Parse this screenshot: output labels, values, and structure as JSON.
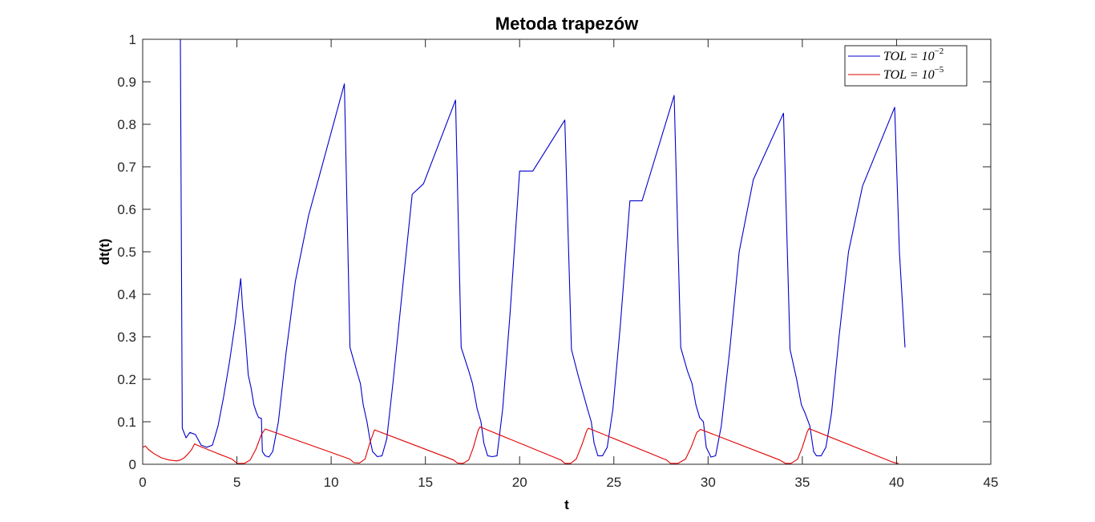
{
  "chart_data": {
    "type": "line",
    "title": "Metoda trapezów",
    "xlabel": "t",
    "ylabel": "dt(t)",
    "xlim": [
      0,
      45
    ],
    "ylim": [
      0,
      1
    ],
    "xticks": [
      0,
      5,
      10,
      15,
      20,
      25,
      30,
      35,
      40,
      45
    ],
    "yticks": [
      0,
      0.1,
      0.2,
      0.3,
      0.4,
      0.5,
      0.6,
      0.7,
      0.8,
      0.9,
      1
    ],
    "xtick_labels": [
      "0",
      "5",
      "10",
      "15",
      "20",
      "25",
      "30",
      "35",
      "40",
      "45"
    ],
    "ytick_labels": [
      "0",
      "0.1",
      "0.2",
      "0.3",
      "0.4",
      "0.5",
      "0.6",
      "0.7",
      "0.8",
      "0.9",
      "1"
    ],
    "grid": false,
    "legend_position": "top-right",
    "series": [
      {
        "name": "TOL = 10^-2",
        "legend_base": "TOL = 10",
        "legend_exp": "−2",
        "color": "#0000cc",
        "x": [
          2.0,
          2.1,
          2.3,
          2.5,
          2.8,
          3.1,
          3.4,
          3.7,
          4.0,
          4.3,
          4.6,
          4.9,
          5.2,
          5.3,
          5.45,
          5.6,
          5.75,
          5.9,
          6.05,
          6.15,
          6.3,
          6.35,
          6.5,
          6.7,
          6.9,
          7.2,
          7.6,
          8.1,
          8.8,
          10.7,
          11.0,
          11.35,
          11.55,
          11.7,
          11.9,
          12.05,
          12.2,
          12.45,
          12.7,
          12.95,
          13.3,
          13.8,
          14.3,
          14.9,
          16.6,
          16.9,
          17.3,
          17.5,
          17.75,
          17.95,
          18.1,
          18.3,
          18.55,
          18.8,
          19.1,
          19.5,
          20.0,
          20.7,
          22.4,
          22.75,
          23.1,
          23.35,
          23.6,
          23.8,
          23.95,
          24.15,
          24.4,
          24.65,
          24.95,
          25.35,
          25.85,
          26.5,
          28.2,
          28.55,
          28.9,
          29.15,
          29.35,
          29.55,
          29.75,
          29.9,
          30.15,
          30.4,
          30.7,
          31.15,
          31.65,
          32.4,
          34.0,
          34.35,
          34.7,
          34.95,
          35.15,
          35.4,
          35.6,
          35.75,
          36.0,
          36.25,
          36.55,
          36.95,
          37.45,
          38.2,
          39.9,
          40.15,
          40.45
        ],
        "y": [
          1.0,
          0.085,
          0.062,
          0.075,
          0.07,
          0.045,
          0.04,
          0.045,
          0.09,
          0.16,
          0.24,
          0.33,
          0.437,
          0.37,
          0.3,
          0.21,
          0.18,
          0.14,
          0.12,
          0.11,
          0.108,
          0.03,
          0.02,
          0.017,
          0.03,
          0.1,
          0.26,
          0.43,
          0.585,
          0.895,
          0.275,
          0.22,
          0.19,
          0.14,
          0.1,
          0.06,
          0.03,
          0.018,
          0.02,
          0.06,
          0.2,
          0.42,
          0.635,
          0.66,
          0.857,
          0.275,
          0.22,
          0.19,
          0.13,
          0.1,
          0.05,
          0.02,
          0.018,
          0.02,
          0.13,
          0.36,
          0.69,
          0.69,
          0.81,
          0.27,
          0.21,
          0.17,
          0.13,
          0.1,
          0.05,
          0.02,
          0.02,
          0.04,
          0.13,
          0.33,
          0.62,
          0.62,
          0.868,
          0.275,
          0.22,
          0.19,
          0.14,
          0.11,
          0.1,
          0.04,
          0.017,
          0.02,
          0.09,
          0.27,
          0.5,
          0.67,
          0.826,
          0.27,
          0.2,
          0.14,
          0.12,
          0.09,
          0.03,
          0.02,
          0.02,
          0.04,
          0.12,
          0.3,
          0.5,
          0.655,
          0.84,
          0.5,
          0.275
        ]
      },
      {
        "name": "TOL = 10^-5",
        "legend_base": "TOL = 10",
        "legend_exp": "−5",
        "color": "#e00000",
        "x": [
          0.0,
          0.15,
          0.3,
          0.6,
          1.0,
          1.4,
          1.8,
          2.0,
          2.2,
          2.4,
          2.6,
          2.75,
          3.0,
          4.0,
          4.7,
          4.8,
          5.0,
          5.4,
          5.7,
          6.0,
          6.3,
          6.5,
          11.0,
          11.2,
          11.5,
          11.8,
          12.05,
          12.3,
          16.5,
          16.7,
          17.0,
          17.3,
          17.55,
          17.8,
          17.9,
          22.2,
          22.4,
          22.7,
          23.0,
          23.3,
          23.55,
          23.65,
          27.8,
          28.0,
          28.4,
          28.8,
          29.1,
          29.4,
          29.6,
          33.8,
          34.1,
          34.4,
          34.75,
          35.0,
          35.25,
          35.35,
          39.8,
          40.1
        ],
        "y": [
          0.04,
          0.043,
          0.035,
          0.025,
          0.015,
          0.01,
          0.008,
          0.01,
          0.015,
          0.024,
          0.035,
          0.048,
          0.043,
          0.025,
          0.013,
          0.01,
          0.002,
          0.002,
          0.01,
          0.035,
          0.07,
          0.083,
          0.012,
          0.004,
          0.003,
          0.012,
          0.05,
          0.081,
          0.01,
          0.003,
          0.002,
          0.01,
          0.04,
          0.08,
          0.088,
          0.01,
          0.002,
          0.002,
          0.012,
          0.045,
          0.078,
          0.085,
          0.01,
          0.002,
          0.002,
          0.012,
          0.04,
          0.075,
          0.082,
          0.01,
          0.002,
          0.002,
          0.012,
          0.04,
          0.075,
          0.084,
          0.005,
          0.002
        ]
      }
    ]
  }
}
